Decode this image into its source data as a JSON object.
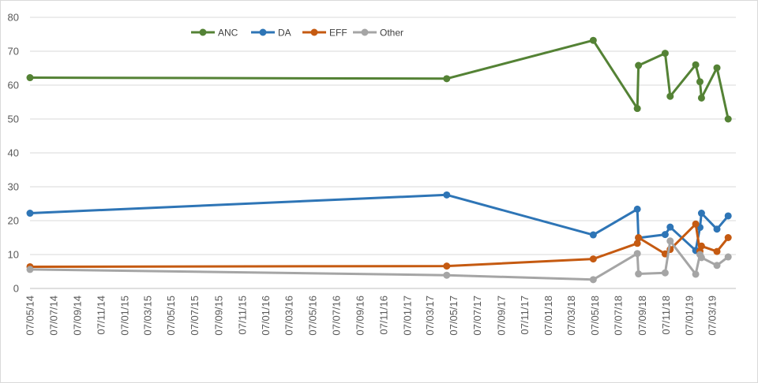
{
  "chart_data": {
    "type": "line",
    "ylim": [
      0,
      80
    ],
    "yticks": [
      0,
      10,
      20,
      30,
      40,
      50,
      60,
      70,
      80
    ],
    "xlim": [
      "2014-05-07",
      "2019-05-07"
    ],
    "xticks": [
      "07/05/14",
      "07/07/14",
      "07/09/14",
      "07/11/14",
      "07/01/15",
      "07/03/15",
      "07/05/15",
      "07/07/15",
      "07/09/15",
      "07/11/15",
      "07/01/16",
      "07/03/16",
      "07/05/16",
      "07/07/16",
      "07/09/16",
      "07/11/16",
      "07/01/17",
      "07/03/17",
      "07/05/17",
      "07/07/17",
      "07/09/17",
      "07/11/17",
      "07/01/18",
      "07/03/18",
      "07/05/18",
      "07/07/18",
      "07/09/18",
      "07/11/18",
      "07/01/19",
      "07/03/19"
    ],
    "legend_position": "top",
    "grid": "horizontal",
    "series": [
      {
        "name": "ANC",
        "color": "#548235",
        "points": [
          [
            "2014-05-07",
            62.2
          ],
          [
            "2017-04-19",
            61.9
          ],
          [
            "2018-05-03",
            73.2
          ],
          [
            "2018-08-25",
            53.1
          ],
          [
            "2018-08-28",
            65.8
          ],
          [
            "2018-11-05",
            69.4
          ],
          [
            "2018-11-18",
            56.7
          ],
          [
            "2019-01-23",
            66.0
          ],
          [
            "2019-02-03",
            61.0
          ],
          [
            "2019-02-07",
            56.2
          ],
          [
            "2019-03-19",
            65.1
          ],
          [
            "2019-04-17",
            50.0
          ]
        ]
      },
      {
        "name": "DA",
        "color": "#2e75b6",
        "points": [
          [
            "2014-05-07",
            22.2
          ],
          [
            "2017-04-19",
            27.6
          ],
          [
            "2018-05-03",
            15.8
          ],
          [
            "2018-08-25",
            23.4
          ],
          [
            "2018-08-28",
            14.9
          ],
          [
            "2018-11-05",
            15.9
          ],
          [
            "2018-11-18",
            18.1
          ],
          [
            "2019-01-23",
            11.2
          ],
          [
            "2019-02-03",
            18.0
          ],
          [
            "2019-02-07",
            22.2
          ],
          [
            "2019-03-19",
            17.5
          ],
          [
            "2019-04-17",
            21.4
          ]
        ]
      },
      {
        "name": "EFF",
        "color": "#c55a11",
        "points": [
          [
            "2014-05-07",
            6.4
          ],
          [
            "2017-04-19",
            6.6
          ],
          [
            "2018-05-03",
            8.7
          ],
          [
            "2018-08-25",
            13.3
          ],
          [
            "2018-08-28",
            15.0
          ],
          [
            "2018-11-05",
            10.2
          ],
          [
            "2018-11-18",
            11.5
          ],
          [
            "2019-01-23",
            19.0
          ],
          [
            "2019-02-03",
            11.0
          ],
          [
            "2019-02-07",
            12.5
          ],
          [
            "2019-03-19",
            10.9
          ],
          [
            "2019-04-17",
            15.0
          ]
        ]
      },
      {
        "name": "Other",
        "color": "#a5a5a5",
        "points": [
          [
            "2014-05-07",
            5.6
          ],
          [
            "2017-04-19",
            3.9
          ],
          [
            "2018-05-03",
            2.6
          ],
          [
            "2018-08-25",
            10.3
          ],
          [
            "2018-08-28",
            4.3
          ],
          [
            "2018-11-05",
            4.6
          ],
          [
            "2018-11-18",
            14.0
          ],
          [
            "2019-01-23",
            4.2
          ],
          [
            "2019-02-03",
            10.0
          ],
          [
            "2019-02-07",
            9.1
          ],
          [
            "2019-03-19",
            6.8
          ],
          [
            "2019-04-17",
            9.3
          ]
        ]
      }
    ]
  }
}
